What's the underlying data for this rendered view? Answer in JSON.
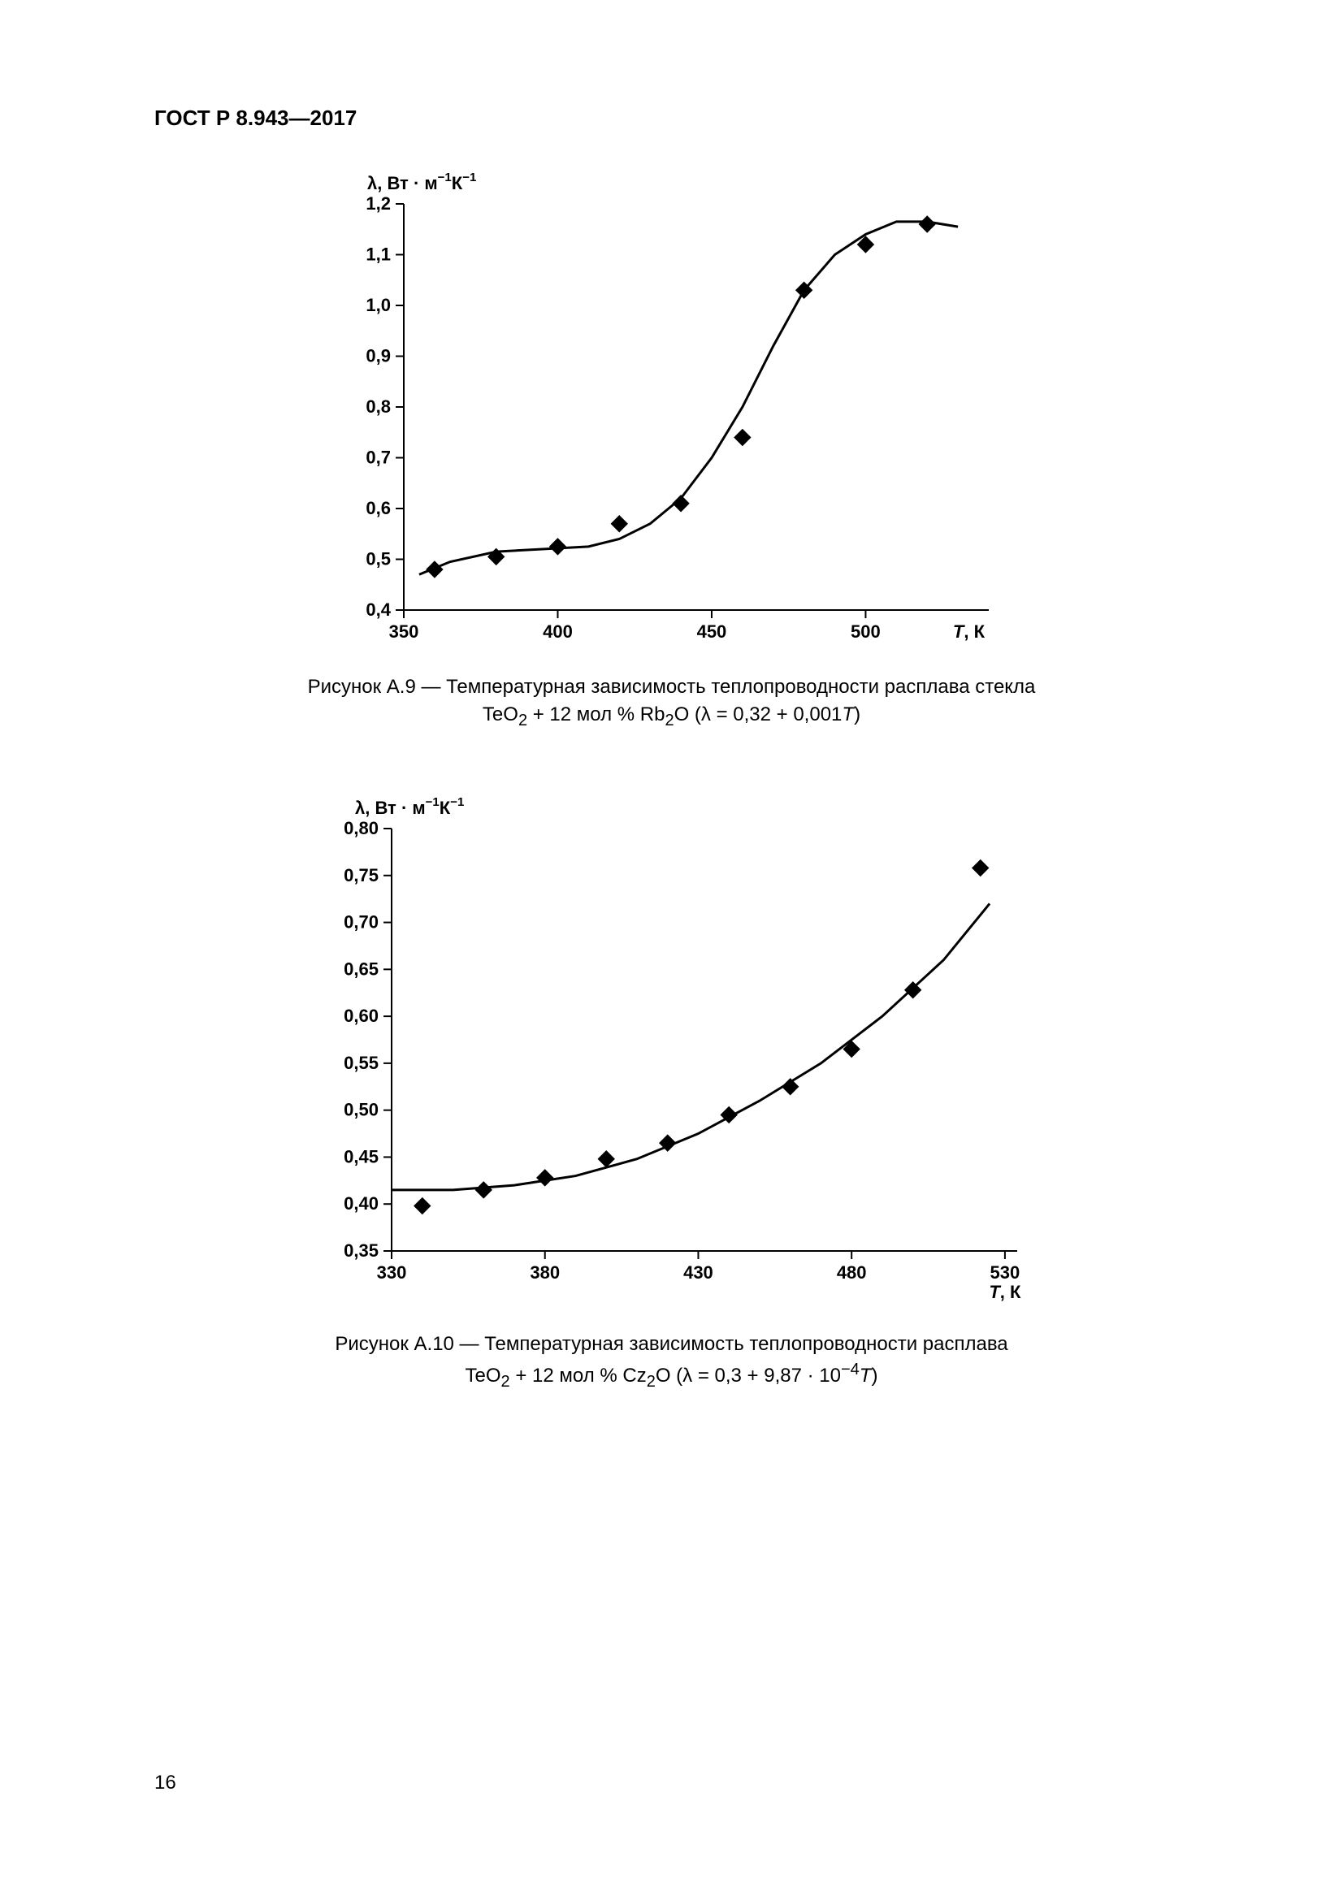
{
  "doc": {
    "header": "ГОСТ Р 8.943—2017",
    "page_number": "16"
  },
  "chart1": {
    "type": "scatter+line",
    "y_axis_label_html": "λ, Вт · м<tspan class='sup' dy='-10'>−1</tspan><tspan dy='10'>К</tspan><tspan class='sup' dy='-10'>−1</tspan>",
    "x_axis_label": "T, К",
    "xlim": [
      350,
      540
    ],
    "ylim": [
      0.4,
      1.2
    ],
    "xticks": [
      350,
      400,
      450,
      500
    ],
    "xtick_labels": [
      "350",
      "400",
      "450",
      "500"
    ],
    "yticks": [
      0.4,
      0.5,
      0.6,
      0.7,
      0.8,
      0.9,
      1.0,
      1.1,
      1.2
    ],
    "ytick_labels": [
      "0,4",
      "0,5",
      "0,6",
      "0,7",
      "0,8",
      "0,9",
      "1,0",
      "1,1",
      "1,2"
    ],
    "points": [
      [
        360,
        0.48
      ],
      [
        380,
        0.505
      ],
      [
        400,
        0.525
      ],
      [
        420,
        0.57
      ],
      [
        440,
        0.61
      ],
      [
        460,
        0.74
      ],
      [
        480,
        1.03
      ],
      [
        500,
        1.12
      ],
      [
        520,
        1.16
      ]
    ],
    "curve": [
      [
        355,
        0.47
      ],
      [
        365,
        0.495
      ],
      [
        380,
        0.515
      ],
      [
        395,
        0.52
      ],
      [
        410,
        0.525
      ],
      [
        420,
        0.54
      ],
      [
        430,
        0.57
      ],
      [
        440,
        0.62
      ],
      [
        450,
        0.7
      ],
      [
        460,
        0.8
      ],
      [
        470,
        0.92
      ],
      [
        480,
        1.03
      ],
      [
        490,
        1.1
      ],
      [
        500,
        1.14
      ],
      [
        510,
        1.165
      ],
      [
        520,
        1.165
      ],
      [
        530,
        1.155
      ]
    ],
    "marker_size": 10,
    "line_width": 3,
    "stroke": "#000000",
    "fill": "#000000",
    "caption_line1": "Рисунок А.9 — Температурная зависимость теплопроводности расплава стекла",
    "caption_line2_pre": "TeO",
    "caption_line2_sub1": "2",
    "caption_line2_mid": " + 12 мол % Rb",
    "caption_line2_sub2": "2",
    "caption_line2_post": "O (λ = 0,32 + 0,001",
    "caption_line2_ital": "T",
    "caption_line2_end": ")"
  },
  "chart2": {
    "type": "scatter+line",
    "x_axis_label": "T, К",
    "xlim": [
      330,
      534
    ],
    "ylim": [
      0.35,
      0.8
    ],
    "xticks": [
      330,
      380,
      430,
      480,
      530
    ],
    "xtick_labels": [
      "330",
      "380",
      "430",
      "480",
      "530"
    ],
    "yticks": [
      0.35,
      0.4,
      0.45,
      0.5,
      0.55,
      0.6,
      0.65,
      0.7,
      0.75,
      0.8
    ],
    "ytick_labels": [
      "0,35",
      "0,40",
      "0,45",
      "0,50",
      "0,55",
      "0,60",
      "0,65",
      "0,70",
      "0,75",
      "0,80"
    ],
    "points": [
      [
        340,
        0.398
      ],
      [
        360,
        0.415
      ],
      [
        380,
        0.428
      ],
      [
        400,
        0.448
      ],
      [
        420,
        0.465
      ],
      [
        440,
        0.495
      ],
      [
        460,
        0.525
      ],
      [
        480,
        0.565
      ],
      [
        500,
        0.628
      ],
      [
        522,
        0.758
      ]
    ],
    "curve": [
      [
        330,
        0.415
      ],
      [
        350,
        0.415
      ],
      [
        370,
        0.42
      ],
      [
        390,
        0.43
      ],
      [
        410,
        0.448
      ],
      [
        430,
        0.475
      ],
      [
        450,
        0.51
      ],
      [
        470,
        0.55
      ],
      [
        490,
        0.6
      ],
      [
        510,
        0.66
      ],
      [
        525,
        0.72
      ]
    ],
    "marker_size": 10,
    "line_width": 3,
    "stroke": "#000000",
    "fill": "#000000",
    "caption_line1": "Рисунок А.10 — Температурная зависимость теплопроводности расплава",
    "caption_line2_pre": "TeO",
    "caption_line2_sub1": "2",
    "caption_line2_mid": " + 12 мол % Cz",
    "caption_line2_sub2": "2",
    "caption_line2_post": "O (λ = 0,3 + 9,87 · 10",
    "caption_line2_sup": "−4",
    "caption_line2_ital": "T",
    "caption_line2_end": ")"
  },
  "style": {
    "tick_len": 10,
    "axis_width": 2,
    "label_fontsize": 22
  }
}
